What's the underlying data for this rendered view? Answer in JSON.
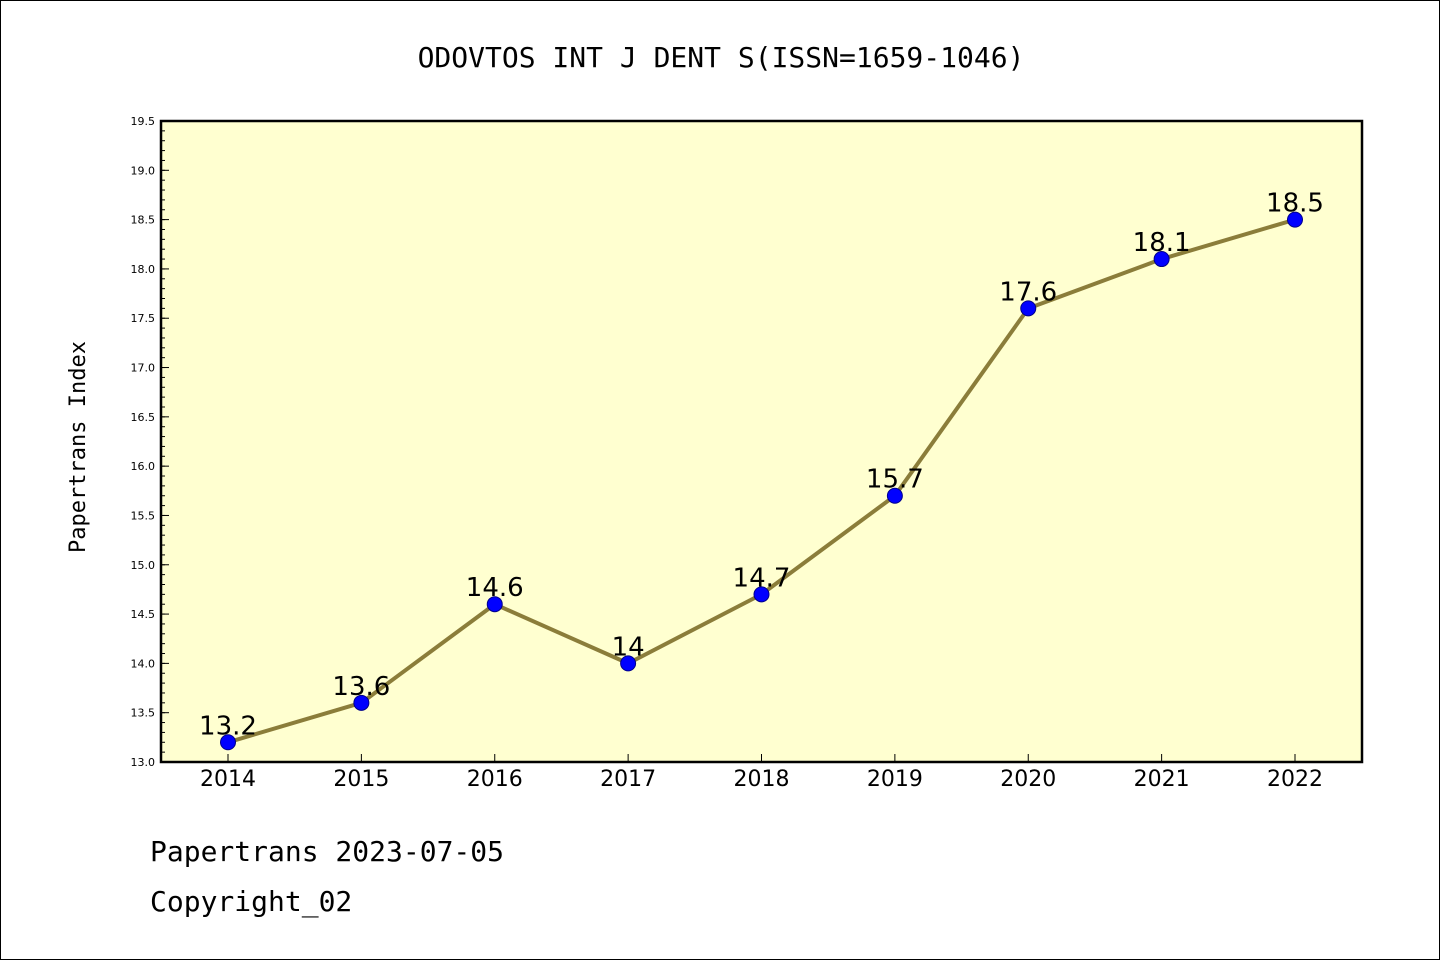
{
  "chart_data": {
    "type": "line",
    "title": "ODOVTOS INT J DENT S(ISSN=1659-1046)",
    "xlabel": "",
    "ylabel": "Papertrans Index",
    "categories": [
      "2014",
      "2015",
      "2016",
      "2017",
      "2018",
      "2019",
      "2020",
      "2021",
      "2022"
    ],
    "series": [
      {
        "values": [
          13.2,
          13.6,
          14.6,
          14.0,
          14.7,
          15.7,
          17.6,
          18.1,
          18.5
        ],
        "data_labels": [
          "13.2",
          "13.6",
          "14.6",
          "14",
          "14.7",
          "15.7",
          "17.6",
          "18.1",
          "18.5"
        ]
      }
    ],
    "ylim": [
      13.0,
      19.5
    ],
    "yticks": [
      "13.0",
      "13.5",
      "14.0",
      "14.5",
      "15.0",
      "15.5",
      "16.0",
      "16.5",
      "17.0",
      "17.5",
      "18.0",
      "18.5",
      "19.0",
      "19.5"
    ],
    "grid": false,
    "legend": "none",
    "colors": {
      "plot_background": "#ffffd0",
      "line": "#8b7d3a",
      "marker_fill": "#0000ff",
      "marker_edge": "#00008b",
      "axes": "#000000"
    }
  },
  "footer": {
    "line1": "Papertrans 2023-07-05",
    "line2": "Copyright_02"
  }
}
